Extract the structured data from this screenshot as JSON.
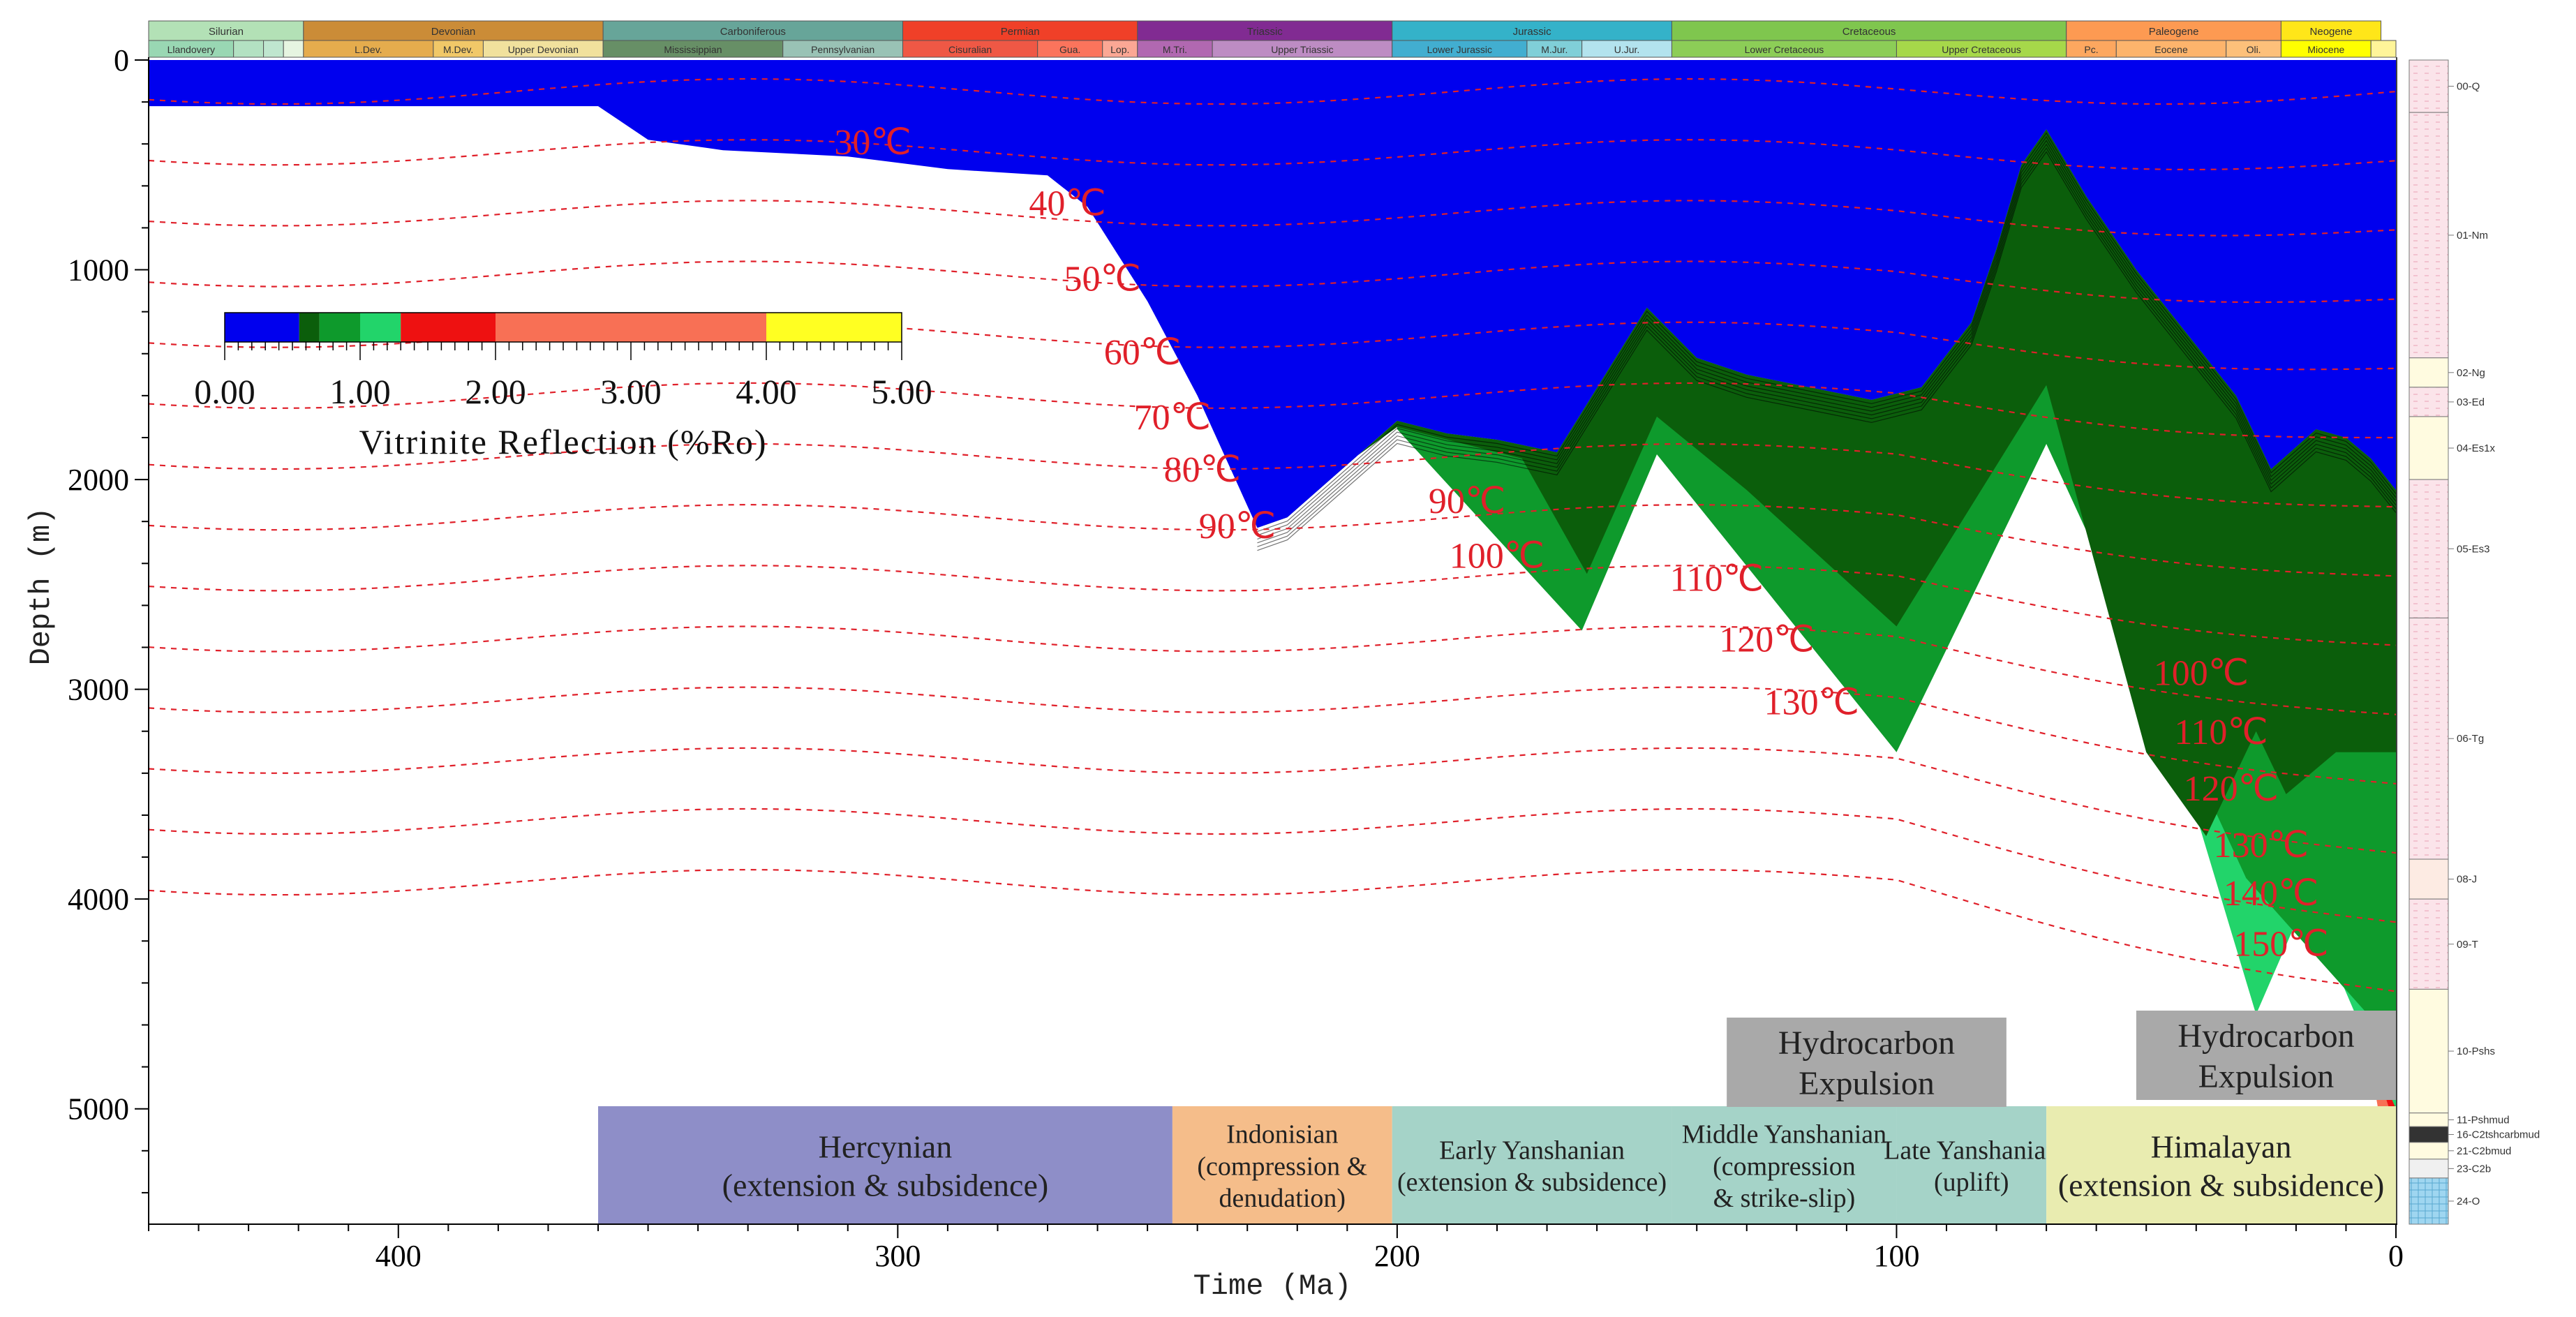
{
  "chart_data": {
    "type": "area",
    "title": "",
    "xlabel": "Time (Ma)",
    "ylabel": "Depth (m)",
    "xlim": [
      450,
      0
    ],
    "ylim": [
      0,
      5550
    ],
    "x_ticks": [
      400,
      300,
      200,
      100,
      0
    ],
    "y_ticks": [
      0,
      1000,
      2000,
      3000,
      4000,
      5000
    ],
    "legend": {
      "title": "Vitrinite Reflection (%Ro)",
      "tick_labels": [
        "0.00",
        "1.00",
        "2.00",
        "3.00",
        "4.00",
        "5.00"
      ],
      "bands": [
        {
          "from": 0.0,
          "to": 0.55,
          "color": "#0000ee"
        },
        {
          "from": 0.55,
          "to": 0.7,
          "color": "#0b5e0b"
        },
        {
          "from": 0.7,
          "to": 1.0,
          "color": "#0e9a2c"
        },
        {
          "from": 1.0,
          "to": 1.3,
          "color": "#22d46a"
        },
        {
          "from": 1.3,
          "to": 2.0,
          "color": "#ee1111"
        },
        {
          "from": 2.0,
          "to": 4.0,
          "color": "#f87055"
        },
        {
          "from": 4.0,
          "to": 5.0,
          "color": "#ffff22"
        }
      ]
    },
    "series": [
      {
        "zone": "Ro 0.00-0.55",
        "color": "#0000ee",
        "top": [
          [
            450,
            0
          ],
          [
            0,
            0
          ]
        ],
        "bottom": [
          [
            450,
            220
          ],
          [
            360,
            220
          ],
          [
            350,
            380
          ],
          [
            335,
            430
          ],
          [
            310,
            460
          ],
          [
            290,
            520
          ],
          [
            270,
            550
          ],
          [
            262,
            700
          ],
          [
            250,
            1150
          ],
          [
            240,
            1600
          ],
          [
            228,
            2230
          ],
          [
            222,
            2180
          ],
          [
            200,
            1720
          ],
          [
            190,
            1780
          ],
          [
            180,
            1810
          ],
          [
            168,
            1870
          ],
          [
            150,
            1180
          ],
          [
            140,
            1420
          ],
          [
            130,
            1500
          ],
          [
            105,
            1620
          ],
          [
            95,
            1560
          ],
          [
            85,
            1250
          ],
          [
            80,
            900
          ],
          [
            75,
            500
          ],
          [
            70,
            330
          ],
          [
            62,
            650
          ],
          [
            52,
            1000
          ],
          [
            42,
            1300
          ],
          [
            32,
            1600
          ],
          [
            25,
            1950
          ],
          [
            16,
            1760
          ],
          [
            10,
            1800
          ],
          [
            5,
            1900
          ],
          [
            0,
            2050
          ]
        ]
      },
      {
        "zone": "Ro 0.55-0.70",
        "color": "#0b5e0b",
        "top": [
          [
            228,
            2230
          ],
          [
            222,
            2180
          ],
          [
            200,
            1720
          ],
          [
            190,
            1780
          ],
          [
            180,
            1810
          ],
          [
            168,
            1870
          ],
          [
            150,
            1180
          ],
          [
            140,
            1420
          ],
          [
            130,
            1500
          ],
          [
            105,
            1620
          ],
          [
            95,
            1560
          ],
          [
            85,
            1250
          ],
          [
            80,
            900
          ],
          [
            75,
            500
          ],
          [
            70,
            330
          ],
          [
            62,
            650
          ],
          [
            52,
            1000
          ],
          [
            42,
            1300
          ],
          [
            32,
            1600
          ],
          [
            25,
            1950
          ],
          [
            16,
            1760
          ],
          [
            10,
            1800
          ],
          [
            5,
            1900
          ],
          [
            0,
            2050
          ]
        ],
        "bottom": [
          [
            228,
            2230
          ],
          [
            200,
            1750
          ],
          [
            175,
            1900
          ],
          [
            162,
            2450
          ],
          [
            148,
            1700
          ],
          [
            130,
            2050
          ],
          [
            100,
            2700
          ],
          [
            70,
            1550
          ],
          [
            50,
            3300
          ],
          [
            38,
            3700
          ],
          [
            28,
            3200
          ],
          [
            22,
            3500
          ],
          [
            12,
            3300
          ],
          [
            0,
            3300
          ]
        ]
      },
      {
        "zone": "Ro 0.70-1.00",
        "color": "#0e9a2c",
        "bottom": [
          [
            200,
            1760
          ],
          [
            163,
            2720
          ],
          [
            148,
            1880
          ],
          [
            100,
            3300
          ],
          [
            70,
            1830
          ],
          [
            30,
            3900
          ],
          [
            0,
            4700
          ]
        ]
      },
      {
        "zone": "Ro 1.00-1.30",
        "color": "#22d46a",
        "bottom": [
          [
            40,
            3600
          ],
          [
            28,
            4550
          ],
          [
            18,
            4000
          ],
          [
            0,
            5000
          ]
        ]
      },
      {
        "zone": "Ro 1.30-2.00",
        "color": "#ee1111",
        "bottom": [
          [
            22,
            4050
          ],
          [
            12,
            4200
          ],
          [
            0,
            5100
          ]
        ]
      },
      {
        "zone": "Ro 2.00-4.00",
        "color": "#f87055",
        "bottom": [
          [
            5,
            4800
          ],
          [
            0,
            5500
          ]
        ]
      }
    ],
    "isotherms": [
      {
        "label": "30℃",
        "label_at": [
          305,
          450
        ]
      },
      {
        "label": "40℃",
        "label_at": [
          266,
          740
        ]
      },
      {
        "label": "50℃",
        "label_at": [
          259,
          1100
        ]
      },
      {
        "label": "60℃",
        "label_at": [
          251,
          1450
        ]
      },
      {
        "label": "70℃",
        "label_at": [
          245,
          1760
        ]
      },
      {
        "label": "80℃",
        "label_at": [
          239,
          2010
        ]
      },
      {
        "label": "90℃",
        "label_at": [
          232,
          2280
        ]
      },
      {
        "label": "90℃",
        "label_at": [
          186,
          2160
        ]
      },
      {
        "label": "100℃",
        "label_at": [
          180,
          2420
        ]
      },
      {
        "label": "110℃",
        "label_at": [
          136,
          2530
        ]
      },
      {
        "label": "120℃",
        "label_at": [
          126,
          2820
        ]
      },
      {
        "label": "130℃",
        "label_at": [
          117,
          3120
        ]
      },
      {
        "label": "100℃",
        "label_at": [
          39,
          2980
        ]
      },
      {
        "label": "110℃",
        "label_at": [
          35,
          3260
        ]
      },
      {
        "label": "120℃",
        "label_at": [
          33,
          3530
        ]
      },
      {
        "label": "130℃",
        "label_at": [
          27,
          3800
        ]
      },
      {
        "label": "140℃",
        "label_at": [
          25,
          4030
        ]
      },
      {
        "label": "150℃",
        "label_at": [
          23,
          4270
        ]
      }
    ],
    "tectonic_events": [
      {
        "from": 360,
        "to": 245,
        "label_1": "Hercynian",
        "label_2": "(extension & subsidence)",
        "color": "#8e8ec8"
      },
      {
        "from": 245,
        "to": 201,
        "label_1": "Indonisian",
        "label_2": "(compression &",
        "label_3": "denudation)",
        "color": "#f5bd8a"
      },
      {
        "from": 201,
        "to": 145,
        "label_1": "Early Yanshanian",
        "label_2": "(extension & subsidence)",
        "color": "#a5d3c8"
      },
      {
        "from": 145,
        "to": 100,
        "label_1": "Middle Yanshanian",
        "label_2": "(compression",
        "label_3": "& strike-slip)",
        "color": "#a5d3c8"
      },
      {
        "from": 100,
        "to": 70,
        "label_1": "Late Yanshanian",
        "label_2": "(uplift)",
        "color": "#a5d3c8"
      },
      {
        "from": 70,
        "to": 0,
        "label_1": "Himalayan",
        "label_2": "(extension & subsidence)",
        "color": "#e9ecb0"
      }
    ],
    "expulsion_boxes": [
      {
        "label_1": "Hydrocarbon",
        "label_2": "Expulsion",
        "from": 134,
        "to": 78
      },
      {
        "label_1": "Hydrocarbon",
        "label_2": "Expulsion",
        "from": 52,
        "to": 0
      }
    ],
    "geologic_periods": [
      {
        "name": "Silurian",
        "from": 450,
        "to": 419,
        "color": "#b3e1b6"
      },
      {
        "name": "Devonian",
        "from": 419,
        "to": 359,
        "color": "#cb8c37"
      },
      {
        "name": "Carboniferous",
        "from": 359,
        "to": 299,
        "color": "#67a599"
      },
      {
        "name": "Permian",
        "from": 299,
        "to": 252,
        "color": "#f04028"
      },
      {
        "name": "Triassic",
        "from": 252,
        "to": 201,
        "color": "#812b92"
      },
      {
        "name": "Jurassic",
        "from": 201,
        "to": 145,
        "color": "#34b2c9"
      },
      {
        "name": "Cretaceous",
        "from": 145,
        "to": 66,
        "color": "#7fc64e"
      },
      {
        "name": "Paleogene",
        "from": 66,
        "to": 23,
        "color": "#fd9a52"
      },
      {
        "name": "Neogene",
        "from": 23,
        "to": 3,
        "color": "#ffe619"
      }
    ],
    "geologic_epochs": [
      {
        "name": "Llandovery",
        "from": 450,
        "to": 433,
        "color": "#99d7b3"
      },
      {
        "name": "",
        "from": 433,
        "to": 427,
        "color": "#b3e1c2"
      },
      {
        "name": "",
        "from": 427,
        "to": 423,
        "color": "#bfe6cf"
      },
      {
        "name": "",
        "from": 423,
        "to": 419,
        "color": "#e6f5e1"
      },
      {
        "name": "L.Dev.",
        "from": 419,
        "to": 393,
        "color": "#e5ac4d"
      },
      {
        "name": "M.Dev.",
        "from": 393,
        "to": 383,
        "color": "#f1c868"
      },
      {
        "name": "Upper Devonian",
        "from": 383,
        "to": 359,
        "color": "#f1e19d"
      },
      {
        "name": "Mississippian",
        "from": 359,
        "to": 323,
        "color": "#678f66"
      },
      {
        "name": "Pennsylvanian",
        "from": 323,
        "to": 299,
        "color": "#99c2b5"
      },
      {
        "name": "Cisuralian",
        "from": 299,
        "to": 272,
        "color": "#ef5845"
      },
      {
        "name": "Gua.",
        "from": 272,
        "to": 259,
        "color": "#fb745c"
      },
      {
        "name": "Lop.",
        "from": 259,
        "to": 252,
        "color": "#fbA794"
      },
      {
        "name": "M.Tri.",
        "from": 252,
        "to": 237,
        "color": "#b168b1"
      },
      {
        "name": "Upper Triassic",
        "from": 237,
        "to": 201,
        "color": "#bd8cc3"
      },
      {
        "name": "Lower Jurassic",
        "from": 201,
        "to": 174,
        "color": "#42aed0"
      },
      {
        "name": "M.Jur.",
        "from": 174,
        "to": 163,
        "color": "#80cfd8"
      },
      {
        "name": "U.Jur.",
        "from": 163,
        "to": 145,
        "color": "#b3e3ee"
      },
      {
        "name": "Lower Cretaceous",
        "from": 145,
        "to": 100,
        "color": "#8ccd57"
      },
      {
        "name": "Upper Cretaceous",
        "from": 100,
        "to": 66,
        "color": "#a6d84a"
      },
      {
        "name": "Pc.",
        "from": 66,
        "to": 56,
        "color": "#fda75f"
      },
      {
        "name": "Eocene",
        "from": 56,
        "to": 34,
        "color": "#fdb46c"
      },
      {
        "name": "Oli.",
        "from": 34,
        "to": 23,
        "color": "#fdc07a"
      },
      {
        "name": "Miocene",
        "from": 23,
        "to": 5,
        "color": "#ffff00"
      },
      {
        "name": "",
        "from": 5,
        "to": 0,
        "color": "#fff599"
      }
    ],
    "stratigraphic_column": [
      {
        "name": "00-Q",
        "top": 0,
        "bottom": 250,
        "fill": "#fbe4ea"
      },
      {
        "name": "01-Nm",
        "top": 250,
        "bottom": 1420,
        "fill": "#fbe4ea"
      },
      {
        "name": "02-Ng",
        "top": 1420,
        "bottom": 1560,
        "fill": "#fffbe0"
      },
      {
        "name": "03-Ed",
        "top": 1560,
        "bottom": 1700,
        "fill": "#fbe4ea"
      },
      {
        "name": "04-Es1x",
        "top": 1700,
        "bottom": 2000,
        "fill": "#fffbe0"
      },
      {
        "name": "05-Es3",
        "top": 2000,
        "bottom": 2660,
        "fill": "#fbe4ea"
      },
      {
        "name": "06-Tg",
        "top": 2660,
        "bottom": 3810,
        "fill": "#fbe4ea"
      },
      {
        "name": "08-J",
        "top": 3810,
        "bottom": 4000,
        "fill": "#fdebe3"
      },
      {
        "name": "09-T",
        "top": 4000,
        "bottom": 4430,
        "fill": "#fbe4ea"
      },
      {
        "name": "10-Pshs",
        "top": 4430,
        "bottom": 5020,
        "fill": "#fffbe0"
      },
      {
        "name": "11-Pshmud",
        "top": 5020,
        "bottom": 5085,
        "fill": "#fffbe0"
      },
      {
        "name": "16-C2tshcarbmud",
        "top": 5085,
        "bottom": 5160,
        "fill": "#333333"
      },
      {
        "name": "21-C2bmud",
        "top": 5160,
        "bottom": 5240,
        "fill": "#fffbe0"
      },
      {
        "name": "23-C2b",
        "top": 5240,
        "bottom": 5330,
        "fill": "#f0f0f0"
      },
      {
        "name": "24-O",
        "top": 5330,
        "bottom": 5550,
        "fill": "#9fd6f0"
      }
    ]
  }
}
